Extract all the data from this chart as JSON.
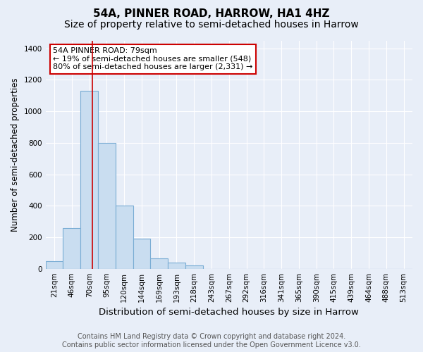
{
  "title": "54A, PINNER ROAD, HARROW, HA1 4HZ",
  "subtitle": "Size of property relative to semi-detached houses in Harrow",
  "xlabel": "Distribution of semi-detached houses by size in Harrow",
  "ylabel": "Number of semi-detached properties",
  "categories": [
    "21sqm",
    "46sqm",
    "70sqm",
    "95sqm",
    "120sqm",
    "144sqm",
    "169sqm",
    "193sqm",
    "218sqm",
    "243sqm",
    "267sqm",
    "292sqm",
    "316sqm",
    "341sqm",
    "365sqm",
    "390sqm",
    "415sqm",
    "439sqm",
    "464sqm",
    "488sqm",
    "513sqm"
  ],
  "values": [
    50,
    260,
    1130,
    800,
    400,
    190,
    65,
    38,
    20,
    0,
    0,
    0,
    0,
    0,
    0,
    0,
    0,
    0,
    0,
    0,
    0
  ],
  "bar_color": "#c9ddf0",
  "bar_edge_color": "#7aadd4",
  "annotation_text": "54A PINNER ROAD: 79sqm\n← 19% of semi-detached houses are smaller (548)\n80% of semi-detached houses are larger (2,331) →",
  "annotation_box_color": "#ffffff",
  "annotation_box_edge": "#cc0000",
  "red_line_x": 2.18,
  "ylim": [
    0,
    1450
  ],
  "yticks": [
    0,
    200,
    400,
    600,
    800,
    1000,
    1200,
    1400
  ],
  "footer": "Contains HM Land Registry data © Crown copyright and database right 2024.\nContains public sector information licensed under the Open Government Licence v3.0.",
  "background_color": "#e8eef8",
  "plot_background": "#e8eef8",
  "grid_color": "#ffffff",
  "title_fontsize": 11,
  "subtitle_fontsize": 10,
  "xlabel_fontsize": 9.5,
  "ylabel_fontsize": 8.5,
  "footer_fontsize": 7,
  "tick_fontsize": 7.5,
  "annotation_fontsize": 8
}
